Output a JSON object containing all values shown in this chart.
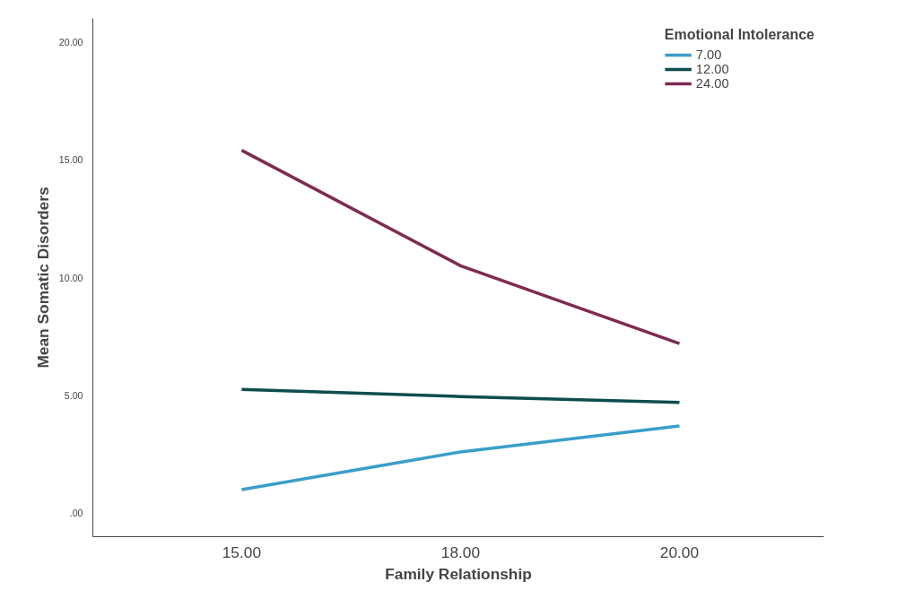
{
  "chart_data": {
    "type": "line",
    "xlabel": "Family Relationship",
    "ylabel": "Mean Somatic Disorders",
    "legend_title": "Emotional Intolerance",
    "categories": [
      "15.00",
      "18.00",
      "20.00"
    ],
    "series": [
      {
        "name": "7.00",
        "color": "#3a9ec9",
        "values": [
          1.0,
          2.6,
          3.7
        ]
      },
      {
        "name": "12.00",
        "color": "#0e4d4d",
        "values": [
          5.25,
          4.95,
          4.7
        ]
      },
      {
        "name": "24.00",
        "color": "#7e2a52",
        "values": [
          15.4,
          10.5,
          7.2
        ]
      }
    ],
    "ylim": [
      -1,
      21
    ],
    "yticks": [
      {
        "value": 0,
        "label": ".00"
      },
      {
        "value": 5,
        "label": "5.00"
      },
      {
        "value": 10,
        "label": "10.00"
      },
      {
        "value": 15,
        "label": "15.00"
      },
      {
        "value": 20,
        "label": "20.00"
      }
    ],
    "grid": false,
    "legend": "top right",
    "line_style": "solid",
    "marker": "none"
  }
}
